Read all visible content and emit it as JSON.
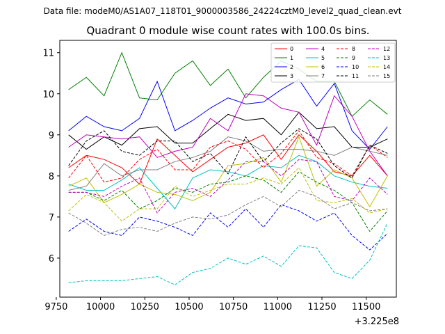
{
  "chart_data": {
    "type": "line",
    "suptitle": "Data file: modeM0/AS1A07_118T01_9000003586_24224cztM0_level2_quad_clean.evt",
    "title": "Quadrant 0 module wise count rates with 100.0s bins.",
    "xlabel": "",
    "ylabel": "",
    "x_offset_label": "+3.225e8",
    "xlim": [
      9770,
      11670
    ],
    "ylim": [
      5.05,
      11.3
    ],
    "xticks": [
      9750,
      10000,
      10250,
      10500,
      10750,
      11000,
      11250,
      11500
    ],
    "yticks": [
      6,
      7,
      8,
      9,
      10,
      11
    ],
    "legend_position": "top-right",
    "grid": false,
    "x": [
      9820,
      9920,
      10020,
      10120,
      10220,
      10320,
      10420,
      10520,
      10620,
      10720,
      10820,
      10920,
      11020,
      11120,
      11220,
      11320,
      11420,
      11520,
      11620
    ],
    "series": [
      {
        "name": "0",
        "color": "#ff0000",
        "dash": "solid",
        "values": [
          8.2,
          8.5,
          8.4,
          8.2,
          7.8,
          8.9,
          8.5,
          8.1,
          8.4,
          8.7,
          8.8,
          9.0,
          8.4,
          9.0,
          8.6,
          8.1,
          8.0,
          8.5,
          8.0
        ]
      },
      {
        "name": "1",
        "color": "#008000",
        "dash": "solid",
        "values": [
          10.1,
          10.4,
          9.95,
          11.0,
          9.9,
          9.85,
          10.5,
          10.8,
          10.2,
          10.6,
          9.9,
          10.4,
          10.8,
          10.6,
          10.3,
          10.3,
          9.45,
          9.85,
          9.5
        ]
      },
      {
        "name": "2",
        "color": "#0000ff",
        "dash": "solid",
        "values": [
          9.1,
          9.45,
          9.2,
          9.1,
          9.4,
          10.3,
          9.1,
          9.35,
          9.65,
          9.9,
          9.75,
          9.8,
          10.1,
          10.35,
          9.7,
          10.25,
          9.1,
          8.65,
          9.2
        ]
      },
      {
        "name": "3",
        "color": "#000000",
        "dash": "solid",
        "values": [
          9.0,
          8.65,
          8.95,
          8.75,
          9.15,
          9.2,
          8.8,
          8.8,
          9.15,
          9.5,
          9.35,
          9.4,
          9.0,
          9.55,
          9.15,
          9.2,
          8.7,
          8.7,
          8.9
        ]
      },
      {
        "name": "4",
        "color": "#c000c0",
        "dash": "solid",
        "values": [
          8.7,
          9.0,
          8.95,
          8.9,
          8.95,
          8.45,
          8.6,
          8.7,
          9.4,
          9.1,
          10.0,
          9.95,
          9.65,
          9.55,
          8.75,
          9.95,
          9.45,
          8.6,
          8.0
        ]
      },
      {
        "name": "5",
        "color": "#00c0c0",
        "dash": "solid",
        "values": [
          7.8,
          7.65,
          7.65,
          7.9,
          8.2,
          7.7,
          7.2,
          7.95,
          8.15,
          8.1,
          8.0,
          8.25,
          8.2,
          8.5,
          8.35,
          8.0,
          7.85,
          7.75,
          7.7
        ]
      },
      {
        "name": "6",
        "color": "#c0c000",
        "dash": "solid",
        "values": [
          7.75,
          7.95,
          7.35,
          7.55,
          7.8,
          7.6,
          7.55,
          7.4,
          7.6,
          8.25,
          8.3,
          8.45,
          7.85,
          8.95,
          7.75,
          8.15,
          7.95,
          7.25,
          8.0
        ]
      },
      {
        "name": "7",
        "color": "#808080",
        "dash": "solid",
        "values": [
          7.65,
          7.75,
          8.3,
          8.0,
          8.15,
          8.15,
          8.35,
          8.45,
          8.6,
          8.95,
          8.85,
          8.6,
          8.65,
          8.65,
          8.6,
          8.5,
          8.7,
          8.6,
          8.5
        ]
      },
      {
        "name": "8",
        "color": "#ff0000",
        "dash": "dashed",
        "values": [
          7.95,
          8.5,
          7.85,
          7.95,
          8.4,
          8.65,
          8.15,
          8.15,
          8.7,
          8.85,
          8.65,
          8.2,
          8.55,
          9.1,
          8.45,
          8.3,
          8.0,
          8.75,
          8.45
        ]
      },
      {
        "name": "9",
        "color": "#008000",
        "dash": "dashed",
        "values": [
          7.6,
          7.6,
          7.4,
          7.65,
          7.2,
          7.4,
          7.7,
          7.6,
          7.8,
          7.85,
          8.0,
          7.9,
          7.6,
          8.1,
          7.85,
          7.65,
          7.35,
          6.65,
          7.15
        ]
      },
      {
        "name": "10",
        "color": "#0000ff",
        "dash": "dashed",
        "values": [
          6.65,
          6.95,
          6.65,
          6.55,
          7.0,
          6.9,
          6.75,
          6.55,
          7.1,
          6.75,
          7.2,
          6.75,
          7.3,
          7.15,
          6.9,
          7.1,
          6.55,
          6.2,
          6.6
        ]
      },
      {
        "name": "11",
        "color": "#000000",
        "dash": "dashed",
        "values": [
          8.25,
          8.85,
          9.1,
          8.6,
          8.5,
          8.85,
          8.85,
          8.35,
          8.55,
          8.05,
          8.95,
          8.35,
          8.8,
          9.15,
          8.9,
          8.25,
          7.95,
          8.75,
          8.55
        ]
      },
      {
        "name": "12",
        "color": "#c000c0",
        "dash": "dashed",
        "values": [
          7.6,
          7.6,
          7.5,
          7.75,
          7.95,
          7.1,
          7.6,
          7.7,
          7.5,
          7.9,
          8.35,
          8.35,
          8.0,
          8.4,
          8.35,
          7.5,
          7.4,
          7.95,
          7.55
        ]
      },
      {
        "name": "13",
        "color": "#00c0c0",
        "dash": "dashed",
        "values": [
          5.4,
          5.45,
          5.45,
          5.45,
          5.5,
          5.55,
          5.35,
          5.65,
          5.75,
          6.0,
          5.85,
          6.05,
          5.8,
          6.3,
          6.25,
          5.65,
          5.5,
          5.95,
          6.85
        ]
      },
      {
        "name": "14",
        "color": "#c0c000",
        "dash": "dashed",
        "values": [
          7.15,
          7.55,
          7.35,
          6.9,
          7.2,
          7.2,
          7.75,
          7.5,
          7.65,
          7.8,
          7.8,
          7.95,
          7.8,
          8.2,
          7.4,
          7.35,
          7.45,
          7.1,
          7.2
        ]
      },
      {
        "name": "15",
        "color": "#808080",
        "dash": "dashed",
        "values": [
          7.1,
          6.85,
          6.55,
          6.7,
          6.75,
          6.65,
          6.85,
          7.0,
          6.95,
          7.05,
          7.3,
          7.5,
          7.25,
          7.65,
          7.5,
          7.2,
          7.35,
          7.15,
          7.2
        ]
      }
    ]
  }
}
